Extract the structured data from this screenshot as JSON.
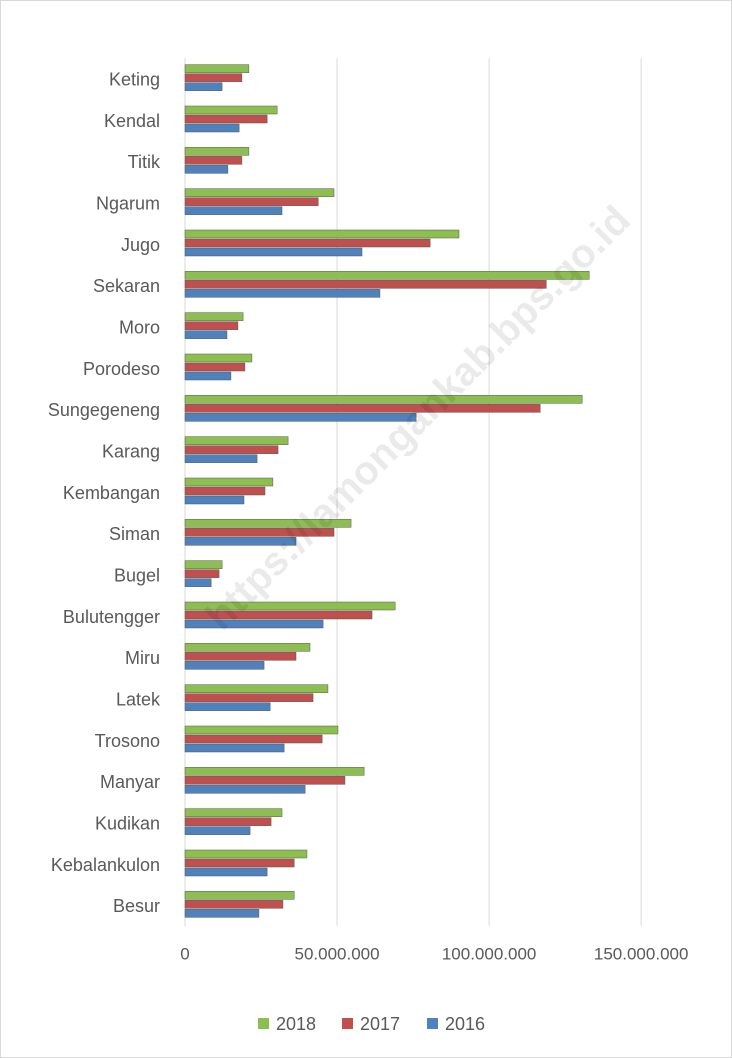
{
  "chart_data": {
    "type": "bar",
    "orientation": "horizontal",
    "watermark": "https://lamongankab.bps.go.id",
    "categories": [
      "Keting",
      "Kendal",
      "Titik",
      "Ngarum",
      "Jugo",
      "Sekaran",
      "Moro",
      "Porodeso",
      "Sungegeneng",
      "Karang",
      "Kembangan",
      "Siman",
      "Bugel",
      "Bulutengger",
      "Miru",
      "Latek",
      "Trosono",
      "Manyar",
      "Kudikan",
      "Kebalankulon",
      "Besur"
    ],
    "series": [
      {
        "name": "2018",
        "color": "#8cbf4f",
        "values": [
          21000000,
          30300000,
          21000000,
          49000000,
          90100000,
          132900000,
          19100000,
          22000000,
          130600000,
          33900000,
          28900000,
          54600000,
          12200000,
          69100000,
          41100000,
          47000000,
          50300000,
          58900000,
          31900000,
          40100000,
          35900000
        ]
      },
      {
        "name": "2017",
        "color": "#c0504d",
        "values": [
          18700000,
          27000000,
          18700000,
          43800000,
          80600000,
          118800000,
          17400000,
          19700000,
          116800000,
          30600000,
          26300000,
          49000000,
          11200000,
          61500000,
          36500000,
          42100000,
          45100000,
          52600000,
          28300000,
          35900000,
          32200000
        ]
      },
      {
        "name": "2016",
        "color": "#4f81bd",
        "values": [
          12200000,
          17800000,
          14100000,
          31900000,
          58200000,
          64100000,
          13800000,
          15100000,
          76000000,
          23700000,
          19400000,
          36500000,
          8600000,
          45400000,
          26000000,
          28000000,
          32600000,
          39500000,
          21400000,
          27000000,
          24300000
        ]
      }
    ],
    "xlim": [
      0,
      170000000
    ],
    "xticks": [
      0,
      {
        "value": 50000000,
        "label": "50.000.000"
      },
      {
        "value": 100000000,
        "label": "100.000.000"
      },
      {
        "value": 150000000,
        "label": "150.000.000"
      }
    ],
    "grid": true,
    "legend": "bottom"
  }
}
